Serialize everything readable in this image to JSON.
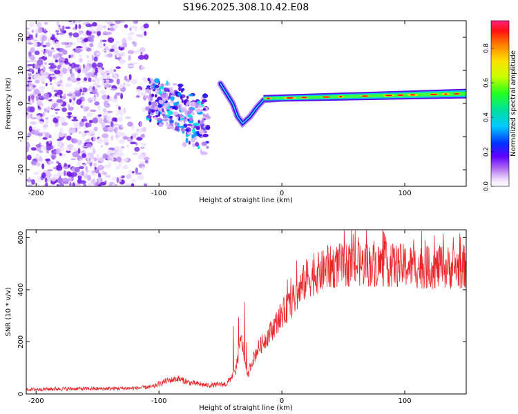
{
  "title": "S196.2025.308.10.42.E08",
  "chart_data": [
    {
      "type": "heatmap",
      "title": "S196.2025.308.10.42.E08",
      "xlabel": "Height of straight line (km)",
      "ylabel": "Frequency (Hz)",
      "xlim": [
        -208,
        150
      ],
      "ylim": [
        -25,
        25
      ],
      "xticks": [
        -200,
        -100,
        0,
        100
      ],
      "yticks": [
        -20,
        -10,
        0,
        10,
        20
      ],
      "colorbar": {
        "label": "Normalized spectral amplitude",
        "range": [
          0,
          0.96
        ],
        "ticks": [
          0.0,
          0.2,
          0.4,
          0.6,
          0.8
        ]
      },
      "features": [
        {
          "name": "diffuse-noise",
          "x_range": [
            -208,
            -110
          ],
          "freq_range": [
            -25,
            25
          ],
          "amplitude": 0.15
        },
        {
          "name": "scatter-cluster",
          "x_range": [
            -110,
            -60
          ],
          "freq_range": [
            -14,
            10
          ],
          "amplitude": 0.3
        },
        {
          "name": "tone-dip",
          "points": [
            [
              -50,
              6
            ],
            [
              -45,
              3
            ],
            [
              -40,
              0
            ],
            [
              -36,
              -4
            ],
            [
              -32,
              -6
            ],
            [
              -26,
              -4
            ],
            [
              -20,
              -1
            ],
            [
              -15,
              1
            ],
            [
              0,
              1.5
            ]
          ]
        },
        {
          "name": "carrier-line",
          "x_range": [
            -15,
            150
          ],
          "freq_start": 1.5,
          "freq_end": 3,
          "amplitude": 0.85
        }
      ]
    },
    {
      "type": "line",
      "title": "",
      "xlabel": "Height of straight line (km)",
      "ylabel": "SNR (10 * v/v)",
      "xlim": [
        -208,
        150
      ],
      "ylim": [
        0,
        630
      ],
      "xticks": [
        -200,
        -100,
        0,
        100
      ],
      "yticks": [
        0,
        200,
        400,
        600
      ],
      "series": [
        {
          "name": "SNR",
          "color": "#e8262a",
          "x": [
            -208,
            -180,
            -150,
            -120,
            -105,
            -95,
            -85,
            -75,
            -60,
            -45,
            -38,
            -33,
            -30,
            -28,
            -25,
            -20,
            -10,
            0,
            10,
            20,
            30,
            40,
            50,
            60,
            80,
            100,
            120,
            140,
            150
          ],
          "y": [
            15,
            18,
            18,
            20,
            25,
            45,
            55,
            40,
            30,
            35,
            80,
            200,
            120,
            60,
            110,
            160,
            220,
            290,
            340,
            420,
            440,
            460,
            470,
            470,
            470,
            465,
            460,
            460,
            465
          ]
        }
      ]
    }
  ]
}
